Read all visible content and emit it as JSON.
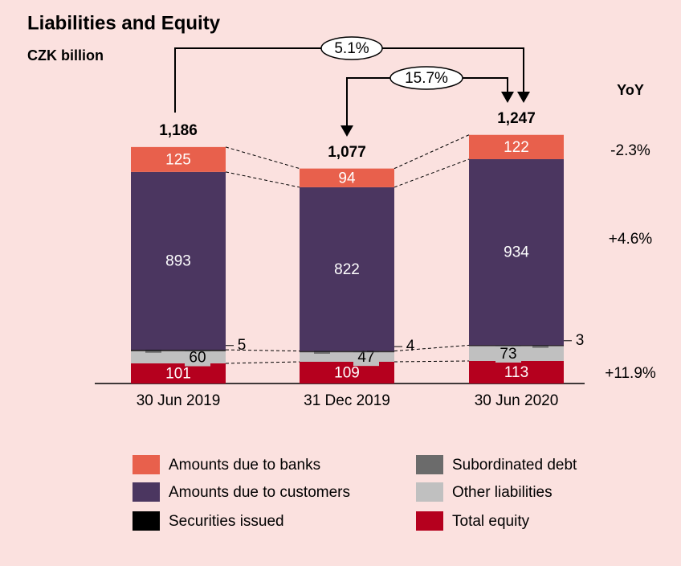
{
  "chart_data": {
    "type": "stacked-bar",
    "title": "Liabilities and Equity",
    "subtitle": "CZK billion",
    "categories": [
      "30 Jun 2019",
      "31 Dec 2019",
      "30 Jun 2020"
    ],
    "series": [
      {
        "name": "Total equity",
        "color": "#b5001e",
        "values": [
          101,
          109,
          113
        ]
      },
      {
        "name": "Other liabilities",
        "color": "#c0c0c0",
        "values": [
          60,
          47,
          73
        ]
      },
      {
        "name": "Subordinated debt",
        "color": "#6b6b6b",
        "values": [
          3,
          3,
          3
        ]
      },
      {
        "name": "Securities issued",
        "color": "#000000",
        "values": [
          5,
          4,
          3
        ]
      },
      {
        "name": "Amounts due to customers",
        "color": "#4b3660",
        "values": [
          893,
          822,
          934
        ]
      },
      {
        "name": "Amounts due to banks",
        "color": "#e8604c",
        "values": [
          125,
          94,
          122
        ]
      }
    ],
    "totals": [
      1186,
      1077,
      1247
    ],
    "totals_labels": [
      "1,186",
      "1,077",
      "1,247"
    ],
    "growth": [
      {
        "label": "5.1%"
      },
      {
        "label": "15.7%"
      }
    ],
    "yoy_title": "YoY",
    "yoy": [
      "-2.3%",
      "+4.6%",
      "+11.9%"
    ]
  }
}
